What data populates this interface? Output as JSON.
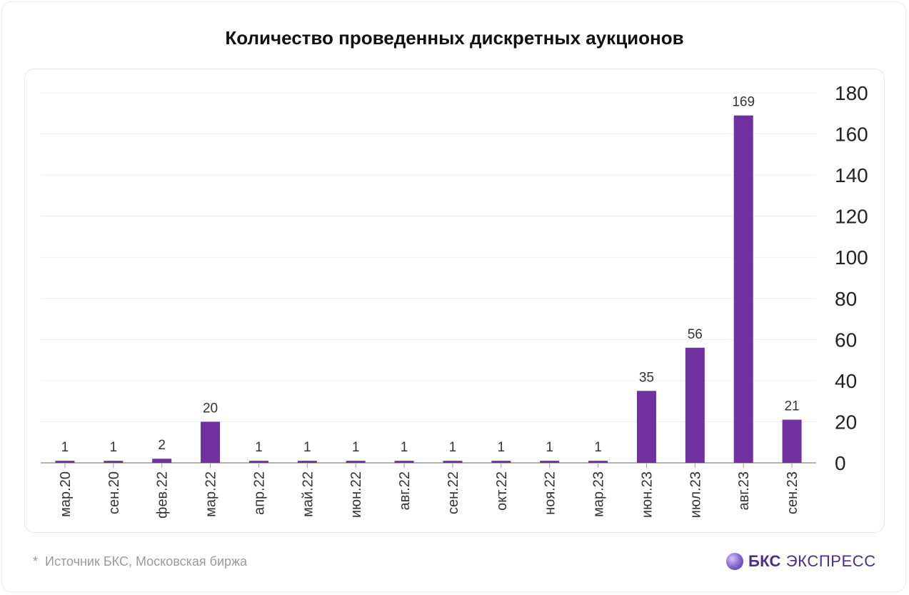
{
  "chart_data": {
    "type": "bar",
    "title": "Количество проведенных дискретных аукционов",
    "categories": [
      "мар.20",
      "сен.20",
      "фев.22",
      "мар.22",
      "апр.22",
      "май.22",
      "июн.22",
      "авг.22",
      "сен.22",
      "окт.22",
      "ноя.22",
      "мар.23",
      "июн.23",
      "июл.23",
      "авг.23",
      "сен.23"
    ],
    "values": [
      1,
      1,
      2,
      20,
      1,
      1,
      1,
      1,
      1,
      1,
      1,
      1,
      35,
      56,
      169,
      21
    ],
    "data_labels": [
      "1",
      "1",
      "2",
      "20",
      "1",
      "1",
      "1",
      "1",
      "1",
      "1",
      "1",
      "1",
      "35",
      "56",
      "169",
      "21"
    ],
    "ylim": [
      0,
      180
    ],
    "yticks": [
      0,
      20,
      40,
      60,
      80,
      100,
      120,
      140,
      160,
      180
    ],
    "y_axis_position": "right",
    "grid": true,
    "bar_color": "#7030a0",
    "xlabel": "",
    "ylabel": ""
  },
  "footnote": {
    "star": "*",
    "text": "Источник БКС, Московская биржа"
  },
  "brand": {
    "icon": "bks-logo-icon",
    "bold": "БКС",
    "light": "ЭКСПРЕСС",
    "color": "#4a2d8c"
  }
}
